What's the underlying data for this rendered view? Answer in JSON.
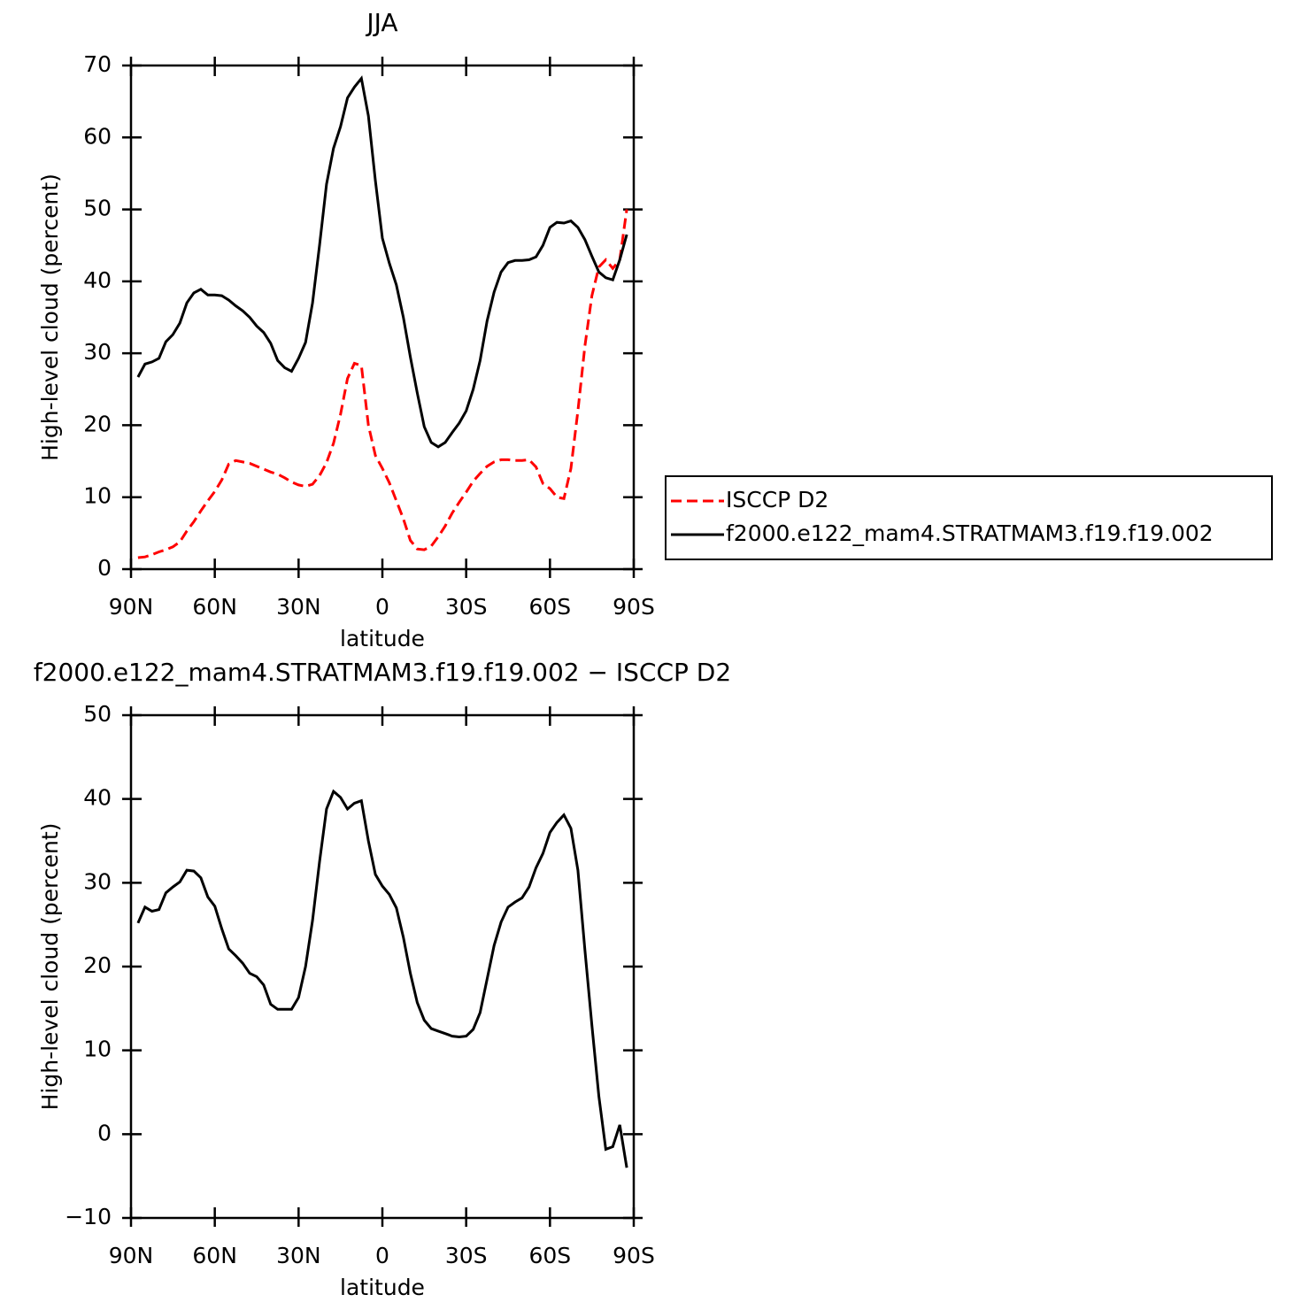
{
  "chart_data": [
    {
      "type": "line",
      "title": "JJA",
      "xlabel": "latitude",
      "ylabel": "High-level cloud (percent)",
      "x": [
        87.5,
        85,
        82.5,
        80,
        77.5,
        75,
        72.5,
        70,
        67.5,
        65,
        62.5,
        60,
        57.5,
        55,
        52.5,
        50,
        47.5,
        45,
        42.5,
        40,
        37.5,
        35,
        32.5,
        30,
        27.5,
        25,
        22.5,
        20,
        17.5,
        15,
        12.5,
        10,
        7.5,
        5,
        2.5,
        0,
        -2.5,
        -5,
        -7.5,
        -10,
        -12.5,
        -15,
        -17.5,
        -20,
        -22.5,
        -25,
        -27.5,
        -30,
        -32.5,
        -35,
        -37.5,
        -40,
        -42.5,
        -45,
        -47.5,
        -50,
        -52.5,
        -55,
        -57.5,
        -60,
        -62.5,
        -65,
        -67.5,
        -70,
        -72.5,
        -75,
        -77.5,
        -80,
        -82.5,
        -85,
        -87.5
      ],
      "series": [
        {
          "name": "ISCCP D2",
          "color": "#ff0000",
          "linestyle": "dashed",
          "values": [
            1.6,
            1.7,
            2,
            2.4,
            2.7,
            3.1,
            3.8,
            5.3,
            6.6,
            8.1,
            9.5,
            10.8,
            12.4,
            14.6,
            15.1,
            14.9,
            14.7,
            14.3,
            13.9,
            13.5,
            13.2,
            12.7,
            12.1,
            11.7,
            11.5,
            11.8,
            13,
            14.8,
            17.5,
            21.5,
            26.5,
            28.6,
            28.3,
            20,
            15.8,
            14,
            12,
            9.5,
            7,
            4,
            2.8,
            2.7,
            3.2,
            4.5,
            6,
            7.8,
            9.3,
            10.7,
            12.2,
            13.3,
            14.3,
            14.9,
            15.2,
            15.2,
            15.1,
            15.1,
            15.2,
            14.2,
            11.9,
            11.2,
            10,
            9.8,
            14,
            22,
            31,
            38,
            42,
            43,
            41.8,
            43,
            50
          ]
        },
        {
          "name": "f2000.e122_mam4.STRATMAM3.f19.f19.002",
          "color": "#000000",
          "linestyle": "solid",
          "values": [
            26.7,
            28.5,
            28.8,
            29.3,
            31.6,
            32.6,
            34.2,
            37,
            38.4,
            38.9,
            38.1,
            38.1,
            38,
            37.4,
            36.6,
            35.9,
            35,
            33.8,
            32.9,
            31.4,
            29,
            28,
            27.5,
            29.3,
            31.5,
            37,
            45,
            53.5,
            58.5,
            61.5,
            65.5,
            67,
            68.2,
            63,
            54,
            46,
            42.5,
            39.5,
            35,
            29.5,
            24.5,
            19.8,
            17.6,
            17,
            17.6,
            19,
            20.3,
            22,
            25,
            29,
            34.5,
            38.5,
            41.3,
            42.6,
            42.9,
            42.9,
            43,
            43.4,
            45,
            47.5,
            48.2,
            48.1,
            48.4,
            47.5,
            45.8,
            43.5,
            41.3,
            40.5,
            40.2,
            43,
            46.5
          ]
        }
      ],
      "xlim": [
        90,
        -90
      ],
      "xticks": [
        {
          "value": 90,
          "label": "90N"
        },
        {
          "value": 60,
          "label": "60N"
        },
        {
          "value": 30,
          "label": "30N"
        },
        0,
        {
          "value": -30,
          "label": "30S"
        },
        {
          "value": -60,
          "label": "60S"
        },
        {
          "value": -90,
          "label": "90S"
        }
      ],
      "ylim": [
        0,
        70
      ],
      "yticks": [
        0,
        10,
        20,
        30,
        40,
        50,
        60,
        70
      ],
      "legend": "right"
    },
    {
      "type": "line",
      "title": "f2000.e122_mam4.STRATMAM3.f19.f19.002 − ISCCP D2",
      "xlabel": "latitude",
      "ylabel": "High-level cloud (percent)",
      "x": [
        87.5,
        85,
        82.5,
        80,
        77.5,
        75,
        72.5,
        70,
        67.5,
        65,
        62.5,
        60,
        57.5,
        55,
        52.5,
        50,
        47.5,
        45,
        42.5,
        40,
        37.5,
        35,
        32.5,
        30,
        27.5,
        25,
        22.5,
        20,
        17.5,
        15,
        12.5,
        10,
        7.5,
        5,
        2.5,
        0,
        -2.5,
        -5,
        -7.5,
        -10,
        -12.5,
        -15,
        -17.5,
        -20,
        -22.5,
        -25,
        -27.5,
        -30,
        -32.5,
        -35,
        -37.5,
        -40,
        -42.5,
        -45,
        -47.5,
        -50,
        -52.5,
        -55,
        -57.5,
        -60,
        -62.5,
        -65,
        -67.5,
        -70,
        -72.5,
        -75,
        -77.5,
        -80,
        -82.5,
        -85,
        -87.5
      ],
      "color": "#000000",
      "values": [
        25.2,
        27.1,
        26.6,
        26.8,
        28.8,
        29.5,
        30.1,
        31.5,
        31.4,
        30.6,
        28.3,
        27.2,
        24.5,
        22.1,
        21.3,
        20.4,
        19.2,
        18.8,
        17.8,
        15.5,
        14.9,
        14.9,
        14.9,
        16.3,
        20,
        25.5,
        32.5,
        38.8,
        40.9,
        40.2,
        38.8,
        39.5,
        39.8,
        35,
        31,
        29.6,
        28.6,
        27,
        23.5,
        19.2,
        15.7,
        13.6,
        12.6,
        12.3,
        12,
        11.7,
        11.6,
        11.7,
        12.5,
        14.5,
        18.5,
        22.5,
        25.3,
        27.1,
        27.7,
        28.2,
        29.5,
        31.8,
        33.5,
        36,
        37.2,
        38.1,
        36.5,
        31.5,
        22,
        13,
        4.5,
        -1.8,
        -1.5,
        1.1,
        -4
      ],
      "xlim": [
        90,
        -90
      ],
      "xticks": [
        {
          "value": 90,
          "label": "90N"
        },
        {
          "value": 60,
          "label": "60N"
        },
        {
          "value": 30,
          "label": "30N"
        },
        0,
        {
          "value": -30,
          "label": "30S"
        },
        {
          "value": -60,
          "label": "60S"
        },
        {
          "value": -90,
          "label": "90S"
        }
      ],
      "ylim": [
        -10,
        50
      ],
      "yticks": [
        {
          "value": -10,
          "label": "−10"
        },
        0,
        10,
        20,
        30,
        40,
        50
      ]
    }
  ]
}
